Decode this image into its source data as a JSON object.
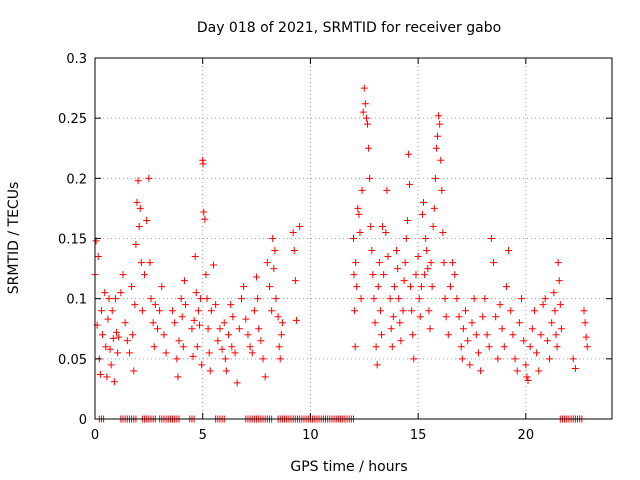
{
  "chart_data": {
    "type": "scatter",
    "title": "Day 018 of 2021, SRMTID for receiver gabo",
    "xlabel": "GPS time / hours",
    "ylabel": "SRMTID / TECUs",
    "xlim": [
      0,
      24
    ],
    "ylim": [
      0,
      0.3
    ],
    "x_ticks": [
      0,
      5,
      10,
      15,
      20
    ],
    "x_tick_labels": [
      "0",
      "5",
      "10",
      "15",
      "20"
    ],
    "y_ticks": [
      0,
      0.05,
      0.1,
      0.15,
      0.2,
      0.25,
      0.3
    ],
    "y_tick_labels": [
      "0",
      "0.05",
      "0.1",
      "0.15",
      "0.2",
      "0.25",
      "0.3"
    ],
    "grid": true,
    "marker": "+",
    "color": "#ff0000",
    "series": [
      {
        "name": "SRMTID",
        "points": [
          [
            0.0,
            0.12
          ],
          [
            0.05,
            0.148
          ],
          [
            0.1,
            0.078
          ],
          [
            0.15,
            0.135
          ],
          [
            0.2,
            0.05
          ],
          [
            0.25,
            0.037
          ],
          [
            0.3,
            0.09
          ],
          [
            0.35,
            0.07
          ],
          [
            0.45,
            0.105
          ],
          [
            0.5,
            0.06
          ],
          [
            0.55,
            0.035
          ],
          [
            0.6,
            0.083
          ],
          [
            0.65,
            0.1
          ],
          [
            0.7,
            0.058
          ],
          [
            0.75,
            0.045
          ],
          [
            0.8,
            0.09
          ],
          [
            0.85,
            0.067
          ],
          [
            0.9,
            0.031
          ],
          [
            0.95,
            0.1
          ],
          [
            1.0,
            0.072
          ],
          [
            1.05,
            0.055
          ],
          [
            1.1,
            0.068
          ],
          [
            1.2,
            0.105
          ],
          [
            1.3,
            0.12
          ],
          [
            1.4,
            0.08
          ],
          [
            1.5,
            0.065
          ],
          [
            1.6,
            0.055
          ],
          [
            1.7,
            0.11
          ],
          [
            1.75,
            0.07
          ],
          [
            1.8,
            0.04
          ],
          [
            1.85,
            0.095
          ],
          [
            1.9,
            0.145
          ],
          [
            1.95,
            0.18
          ],
          [
            2.0,
            0.198
          ],
          [
            2.05,
            0.16
          ],
          [
            2.1,
            0.175
          ],
          [
            2.15,
            0.13
          ],
          [
            2.2,
            0.09
          ],
          [
            2.3,
            0.12
          ],
          [
            2.4,
            0.165
          ],
          [
            2.5,
            0.2
          ],
          [
            2.55,
            0.13
          ],
          [
            2.6,
            0.1
          ],
          [
            2.7,
            0.08
          ],
          [
            2.75,
            0.06
          ],
          [
            2.8,
            0.095
          ],
          [
            2.9,
            0.075
          ],
          [
            3.0,
            0.09
          ],
          [
            3.1,
            0.11
          ],
          [
            3.2,
            0.07
          ],
          [
            3.3,
            0.055
          ],
          [
            3.6,
            0.09
          ],
          [
            3.7,
            0.08
          ],
          [
            3.8,
            0.05
          ],
          [
            3.85,
            0.035
          ],
          [
            3.9,
            0.065
          ],
          [
            4.0,
            0.1
          ],
          [
            4.05,
            0.085
          ],
          [
            4.1,
            0.06
          ],
          [
            4.15,
            0.115
          ],
          [
            4.2,
            0.095
          ],
          [
            4.5,
            0.075
          ],
          [
            4.55,
            0.052
          ],
          [
            4.6,
            0.082
          ],
          [
            4.65,
            0.135
          ],
          [
            4.7,
            0.105
          ],
          [
            4.75,
            0.06
          ],
          [
            4.8,
            0.09
          ],
          [
            4.85,
            0.078
          ],
          [
            4.9,
            0.1
          ],
          [
            4.95,
            0.045
          ],
          [
            5.0,
            0.215
          ],
          [
            5.02,
            0.212
          ],
          [
            5.05,
            0.172
          ],
          [
            5.1,
            0.166
          ],
          [
            5.15,
            0.12
          ],
          [
            5.2,
            0.1
          ],
          [
            5.25,
            0.075
          ],
          [
            5.3,
            0.055
          ],
          [
            5.35,
            0.04
          ],
          [
            5.4,
            0.09
          ],
          [
            5.5,
            0.128
          ],
          [
            5.6,
            0.095
          ],
          [
            5.7,
            0.065
          ],
          [
            5.8,
            0.075
          ],
          [
            5.9,
            0.058
          ],
          [
            6.0,
            0.08
          ],
          [
            6.05,
            0.05
          ],
          [
            6.1,
            0.04
          ],
          [
            6.2,
            0.07
          ],
          [
            6.3,
            0.095
          ],
          [
            6.35,
            0.06
          ],
          [
            6.4,
            0.085
          ],
          [
            6.5,
            0.055
          ],
          [
            6.6,
            0.03
          ],
          [
            6.7,
            0.075
          ],
          [
            6.8,
            0.1
          ],
          [
            6.9,
            0.11
          ],
          [
            7.0,
            0.083
          ],
          [
            7.1,
            0.07
          ],
          [
            7.2,
            0.06
          ],
          [
            7.3,
            0.055
          ],
          [
            7.4,
            0.09
          ],
          [
            7.5,
            0.118
          ],
          [
            7.55,
            0.1
          ],
          [
            7.6,
            0.075
          ],
          [
            7.7,
            0.065
          ],
          [
            7.8,
            0.05
          ],
          [
            7.9,
            0.035
          ],
          [
            8.0,
            0.13
          ],
          [
            8.1,
            0.11
          ],
          [
            8.2,
            0.09
          ],
          [
            8.25,
            0.15
          ],
          [
            8.3,
            0.125
          ],
          [
            8.35,
            0.14
          ],
          [
            8.4,
            0.1
          ],
          [
            8.5,
            0.085
          ],
          [
            8.55,
            0.06
          ],
          [
            8.6,
            0.05
          ],
          [
            8.65,
            0.07
          ],
          [
            8.7,
            0.08
          ],
          [
            9.2,
            0.155
          ],
          [
            9.25,
            0.14
          ],
          [
            9.3,
            0.115
          ],
          [
            9.35,
            0.082
          ],
          [
            9.5,
            0.16
          ],
          [
            12.0,
            0.15
          ],
          [
            12.02,
            0.12
          ],
          [
            12.05,
            0.09
          ],
          [
            12.08,
            0.06
          ],
          [
            12.1,
            0.13
          ],
          [
            12.15,
            0.11
          ],
          [
            12.2,
            0.175
          ],
          [
            12.25,
            0.17
          ],
          [
            12.3,
            0.155
          ],
          [
            12.35,
            0.1
          ],
          [
            12.4,
            0.19
          ],
          [
            12.45,
            0.255
          ],
          [
            12.5,
            0.275
          ],
          [
            12.55,
            0.262
          ],
          [
            12.6,
            0.25
          ],
          [
            12.65,
            0.245
          ],
          [
            12.7,
            0.225
          ],
          [
            12.75,
            0.2
          ],
          [
            12.8,
            0.16
          ],
          [
            12.85,
            0.14
          ],
          [
            12.9,
            0.12
          ],
          [
            12.95,
            0.1
          ],
          [
            13.0,
            0.08
          ],
          [
            13.05,
            0.06
          ],
          [
            13.1,
            0.045
          ],
          [
            13.15,
            0.11
          ],
          [
            13.2,
            0.13
          ],
          [
            13.25,
            0.09
          ],
          [
            13.3,
            0.07
          ],
          [
            13.35,
            0.16
          ],
          [
            13.4,
            0.12
          ],
          [
            13.5,
            0.155
          ],
          [
            13.55,
            0.19
          ],
          [
            13.6,
            0.135
          ],
          [
            13.7,
            0.1
          ],
          [
            13.75,
            0.075
          ],
          [
            13.8,
            0.06
          ],
          [
            13.85,
            0.085
          ],
          [
            13.9,
            0.11
          ],
          [
            14.0,
            0.14
          ],
          [
            14.05,
            0.125
          ],
          [
            14.1,
            0.1
          ],
          [
            14.15,
            0.08
          ],
          [
            14.2,
            0.065
          ],
          [
            14.3,
            0.09
          ],
          [
            14.35,
            0.115
          ],
          [
            14.4,
            0.13
          ],
          [
            14.45,
            0.15
          ],
          [
            14.5,
            0.165
          ],
          [
            14.55,
            0.22
          ],
          [
            14.6,
            0.195
          ],
          [
            14.65,
            0.11
          ],
          [
            14.7,
            0.09
          ],
          [
            14.75,
            0.07
          ],
          [
            14.8,
            0.05
          ],
          [
            14.9,
            0.12
          ],
          [
            15.0,
            0.135
          ],
          [
            15.05,
            0.1
          ],
          [
            15.1,
            0.085
          ],
          [
            15.15,
            0.11
          ],
          [
            15.2,
            0.17
          ],
          [
            15.25,
            0.18
          ],
          [
            15.3,
            0.12
          ],
          [
            15.35,
            0.15
          ],
          [
            15.4,
            0.14
          ],
          [
            15.45,
            0.125
          ],
          [
            15.5,
            0.09
          ],
          [
            15.55,
            0.075
          ],
          [
            15.6,
            0.13
          ],
          [
            15.65,
            0.11
          ],
          [
            15.7,
            0.16
          ],
          [
            15.75,
            0.175
          ],
          [
            15.8,
            0.2
          ],
          [
            15.85,
            0.225
          ],
          [
            15.9,
            0.235
          ],
          [
            15.95,
            0.252
          ],
          [
            16.0,
            0.245
          ],
          [
            16.05,
            0.215
          ],
          [
            16.1,
            0.19
          ],
          [
            16.15,
            0.155
          ],
          [
            16.2,
            0.13
          ],
          [
            16.25,
            0.1
          ],
          [
            16.3,
            0.085
          ],
          [
            16.4,
            0.07
          ],
          [
            16.5,
            0.11
          ],
          [
            16.6,
            0.13
          ],
          [
            16.7,
            0.12
          ],
          [
            16.8,
            0.1
          ],
          [
            16.9,
            0.085
          ],
          [
            17.0,
            0.06
          ],
          [
            17.05,
            0.05
          ],
          [
            17.1,
            0.075
          ],
          [
            17.2,
            0.09
          ],
          [
            17.3,
            0.065
          ],
          [
            17.4,
            0.045
          ],
          [
            17.5,
            0.08
          ],
          [
            17.6,
            0.1
          ],
          [
            17.7,
            0.07
          ],
          [
            17.8,
            0.055
          ],
          [
            17.9,
            0.04
          ],
          [
            18.0,
            0.085
          ],
          [
            18.1,
            0.1
          ],
          [
            18.2,
            0.07
          ],
          [
            18.3,
            0.06
          ],
          [
            18.4,
            0.15
          ],
          [
            18.5,
            0.13
          ],
          [
            18.6,
            0.085
          ],
          [
            18.7,
            0.05
          ],
          [
            18.8,
            0.095
          ],
          [
            18.9,
            0.075
          ],
          [
            19.0,
            0.06
          ],
          [
            19.1,
            0.11
          ],
          [
            19.2,
            0.14
          ],
          [
            19.3,
            0.09
          ],
          [
            19.4,
            0.07
          ],
          [
            19.5,
            0.05
          ],
          [
            19.6,
            0.04
          ],
          [
            19.7,
            0.08
          ],
          [
            19.8,
            0.1
          ],
          [
            19.9,
            0.065
          ],
          [
            20.0,
            0.045
          ],
          [
            20.05,
            0.035
          ],
          [
            20.1,
            0.032
          ],
          [
            20.2,
            0.06
          ],
          [
            20.3,
            0.075
          ],
          [
            20.4,
            0.09
          ],
          [
            20.5,
            0.055
          ],
          [
            20.6,
            0.04
          ],
          [
            20.7,
            0.07
          ],
          [
            20.8,
            0.095
          ],
          [
            20.9,
            0.1
          ],
          [
            21.0,
            0.065
          ],
          [
            21.1,
            0.05
          ],
          [
            21.2,
            0.08
          ],
          [
            21.3,
            0.105
          ],
          [
            21.35,
            0.09
          ],
          [
            21.4,
            0.07
          ],
          [
            21.45,
            0.06
          ],
          [
            21.5,
            0.13
          ],
          [
            21.55,
            0.115
          ],
          [
            21.6,
            0.095
          ],
          [
            21.65,
            0.075
          ],
          [
            22.2,
            0.05
          ],
          [
            22.3,
            0.042
          ],
          [
            22.7,
            0.09
          ],
          [
            22.75,
            0.08
          ],
          [
            22.8,
            0.068
          ],
          [
            22.85,
            0.06
          ]
        ],
        "zero_ranges": [
          [
            0.2,
            0.4
          ],
          [
            1.2,
            1.9
          ],
          [
            2.2,
            2.8
          ],
          [
            3.0,
            3.9
          ],
          [
            4.4,
            4.6
          ],
          [
            5.6,
            6.0
          ],
          [
            7.0,
            8.2
          ],
          [
            8.5,
            12.0
          ],
          [
            21.6,
            22.6
          ]
        ]
      }
    ]
  }
}
